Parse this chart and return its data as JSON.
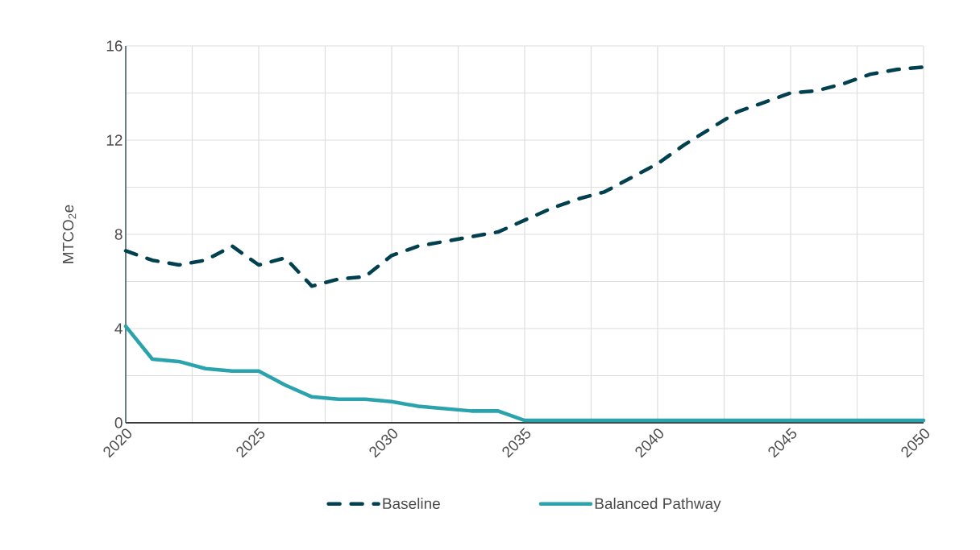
{
  "chart_data": {
    "type": "line",
    "ylabel": "MTCO$_{2}$e",
    "x": [
      2020,
      2021,
      2022,
      2023,
      2024,
      2025,
      2026,
      2027,
      2028,
      2029,
      2030,
      2031,
      2032,
      2033,
      2034,
      2035,
      2036,
      2037,
      2038,
      2039,
      2040,
      2041,
      2042,
      2043,
      2044,
      2045,
      2046,
      2047,
      2048,
      2049,
      2050
    ],
    "series": [
      {
        "name": "Baseline",
        "color": "#00404f",
        "line_style": "dashed",
        "values": [
          7.3,
          6.9,
          6.7,
          6.9,
          7.5,
          6.7,
          7.0,
          5.8,
          6.1,
          6.2,
          7.1,
          7.5,
          7.7,
          7.9,
          8.1,
          8.6,
          9.1,
          9.5,
          9.8,
          10.4,
          11.0,
          11.8,
          12.5,
          13.2,
          13.6,
          14.0,
          14.1,
          14.4,
          14.8,
          15.0,
          15.1
        ]
      },
      {
        "name": "Balanced Pathway",
        "color": "#2aa3ad",
        "line_style": "solid",
        "values": [
          4.1,
          2.7,
          2.6,
          2.3,
          2.2,
          2.2,
          1.6,
          1.1,
          1.0,
          1.0,
          0.9,
          0.7,
          0.6,
          0.5,
          0.5,
          0.1,
          0.1,
          0.1,
          0.1,
          0.1,
          0.1,
          0.1,
          0.1,
          0.1,
          0.1,
          0.1,
          0.1,
          0.1,
          0.1,
          0.1,
          0.1
        ]
      }
    ],
    "xlim": [
      2020,
      2050
    ],
    "xticks": [
      2020,
      {
        "value": 2022.5,
        "label": null
      },
      2025,
      {
        "value": 2027.5,
        "label": null
      },
      2030,
      {
        "value": 2032.5,
        "label": null
      },
      2035,
      {
        "value": 2037.5,
        "label": null
      },
      2040,
      {
        "value": 2042.5,
        "label": null
      },
      2045,
      {
        "value": 2047.5,
        "label": null
      },
      2050
    ],
    "ylim": [
      0,
      16
    ],
    "yticks": [
      0,
      {
        "value": 2,
        "label": null
      },
      4,
      {
        "value": 6,
        "label": null
      },
      8,
      {
        "value": 10,
        "label": null
      },
      12,
      {
        "value": 14,
        "label": null
      },
      16
    ],
    "grid": true,
    "legend": "bottom",
    "marker": "none"
  }
}
